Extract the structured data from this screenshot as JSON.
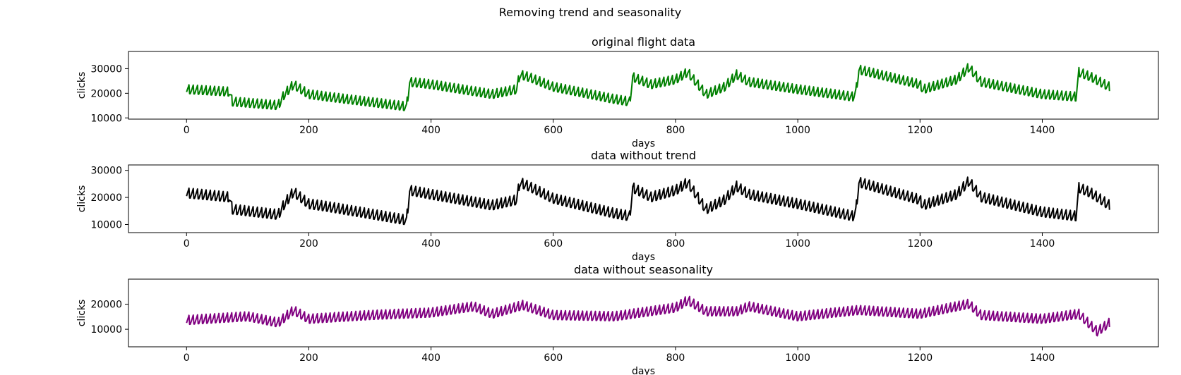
{
  "figure": {
    "suptitle": "Removing trend and seasonality"
  },
  "chart_data": [
    {
      "type": "line",
      "title": "original flight data",
      "xlabel": "days",
      "ylabel": "clicks",
      "color": "#008000",
      "xlim": [
        -95,
        1590
      ],
      "ylim": [
        9500,
        37000
      ],
      "xticks": [
        0,
        200,
        400,
        600,
        800,
        1000,
        1200,
        1400
      ],
      "xtick_labels": [
        "0",
        "200",
        "400",
        "600",
        "800",
        "1000",
        "1200",
        "1400"
      ],
      "yticks": [
        10000,
        20000,
        30000
      ],
      "ytick_labels": [
        "10000",
        "20000",
        "30000"
      ],
      "weekly_amplitude": 3000,
      "series": [
        {
          "name": "clicks",
          "x": [
            0,
            70,
            75,
            150,
            160,
            175,
            200,
            230,
            360,
            365,
            400,
            500,
            540,
            545,
            560,
            600,
            700,
            725,
            730,
            760,
            800,
            820,
            850,
            880,
            900,
            920,
            1000,
            1090,
            1095,
            1100,
            1200,
            1205,
            1260,
            1280,
            1300,
            1400,
            1455,
            1460,
            1480,
            1510
          ],
          "y": [
            22000,
            21000,
            17000,
            15500,
            20000,
            24000,
            20000,
            19000,
            15000,
            25000,
            24000,
            20000,
            22000,
            28000,
            27000,
            23000,
            18000,
            17000,
            27000,
            24000,
            26000,
            29000,
            20000,
            23000,
            28000,
            25000,
            22000,
            19000,
            21000,
            30000,
            24000,
            22000,
            26000,
            31000,
            25000,
            20000,
            19000,
            29000,
            27000,
            23000
          ]
        }
      ]
    },
    {
      "type": "line",
      "title": "data without trend",
      "xlabel": "days",
      "ylabel": "clicks",
      "color": "#000000",
      "xlim": [
        -95,
        1590
      ],
      "ylim": [
        7000,
        32000
      ],
      "xticks": [
        0,
        200,
        400,
        600,
        800,
        1000,
        1200,
        1400
      ],
      "xtick_labels": [
        "0",
        "200",
        "400",
        "600",
        "800",
        "1000",
        "1200",
        "1400"
      ],
      "yticks": [
        10000,
        20000,
        30000
      ],
      "ytick_labels": [
        "10000",
        "20000",
        "30000"
      ],
      "weekly_amplitude": 3000,
      "series": [
        {
          "name": "clicks",
          "x": [
            0,
            70,
            75,
            150,
            160,
            175,
            200,
            230,
            360,
            365,
            400,
            500,
            540,
            545,
            560,
            600,
            700,
            725,
            730,
            760,
            800,
            820,
            850,
            880,
            900,
            920,
            1000,
            1090,
            1095,
            1100,
            1200,
            1205,
            1260,
            1280,
            1300,
            1400,
            1455,
            1460,
            1480,
            1510
          ],
          "y": [
            22000,
            20500,
            16000,
            14000,
            18000,
            22500,
            18000,
            17000,
            12000,
            23000,
            21500,
            17500,
            19500,
            26000,
            24500,
            20000,
            14500,
            13500,
            24000,
            20500,
            23000,
            26000,
            16000,
            19500,
            24500,
            21500,
            18000,
            13500,
            15500,
            26000,
            19500,
            17500,
            21500,
            26500,
            20500,
            15000,
            13500,
            24000,
            22000,
            17500
          ]
        }
      ]
    },
    {
      "type": "line",
      "title": "data without seasonality",
      "xlabel": "days",
      "ylabel": "clicks",
      "color": "#800080",
      "xlim": [
        -95,
        1590
      ],
      "ylim": [
        3000,
        30000
      ],
      "xticks": [
        0,
        200,
        400,
        600,
        800,
        1000,
        1200,
        1400
      ],
      "xtick_labels": [
        "0",
        "200",
        "400",
        "600",
        "800",
        "1000",
        "1200",
        "1400"
      ],
      "yticks": [
        10000,
        20000
      ],
      "ytick_labels": [
        "10000",
        "20000"
      ],
      "weekly_amplitude": 3000,
      "series": [
        {
          "name": "clicks",
          "x": [
            0,
            100,
            150,
            175,
            200,
            300,
            400,
            470,
            500,
            550,
            600,
            700,
            800,
            820,
            850,
            900,
            920,
            1000,
            1100,
            1200,
            1280,
            1300,
            1400,
            1460,
            1490,
            1510
          ],
          "y": [
            14000,
            15500,
            13000,
            18000,
            14500,
            16000,
            17000,
            19500,
            16500,
            20000,
            16000,
            15500,
            19000,
            22000,
            17500,
            17500,
            19500,
            15500,
            18000,
            16500,
            20500,
            16000,
            14500,
            16500,
            9500,
            13000
          ]
        }
      ]
    }
  ]
}
